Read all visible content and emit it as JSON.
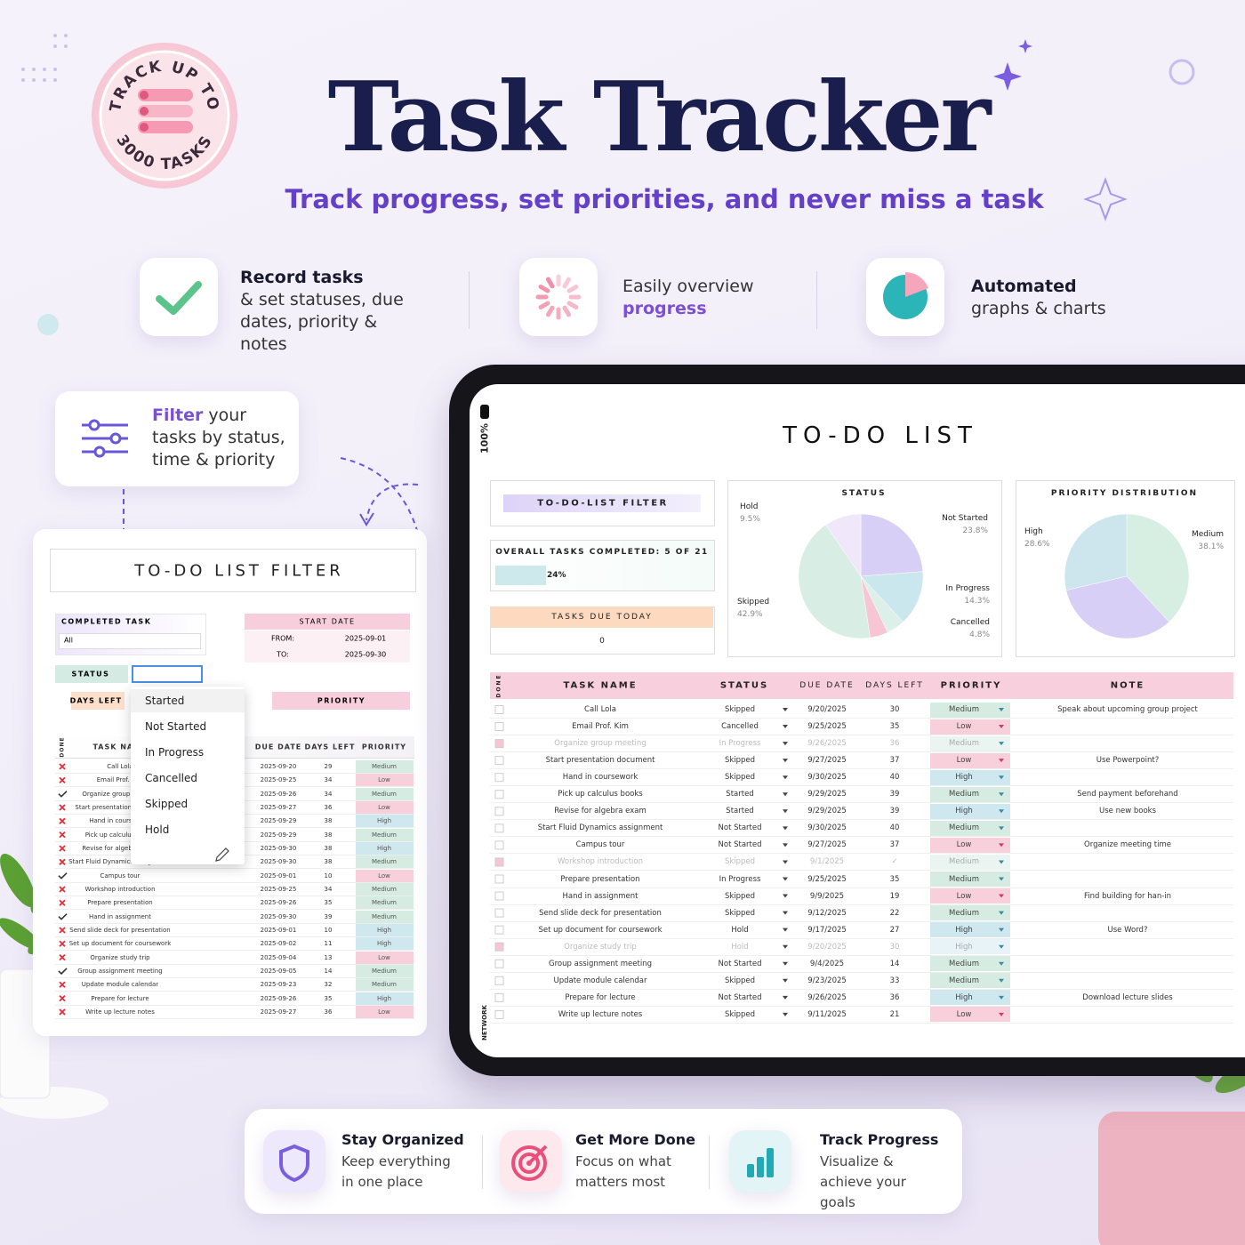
{
  "badge": {
    "top": "TRACK UP TO",
    "bottom": "3000 TASKS"
  },
  "header": {
    "title": "Task Tracker",
    "subtitle": "Track progress, set priorities, and never miss a task"
  },
  "features": [
    {
      "title": "Record tasks",
      "text": "& set statuses, due dates, priority & notes"
    },
    {
      "title": "Easily overview",
      "text": "progress"
    },
    {
      "title": "Automated",
      "text": "graphs & charts"
    }
  ],
  "filter_callout": {
    "highlight": "Filter",
    "text": "your tasks by status, time & priority"
  },
  "filter_panel": {
    "title": "TO-DO LIST FILTER",
    "completed_label": "COMPLETED TASK",
    "completed_value": "All",
    "start_date_label": "START DATE",
    "from_label": "FROM:",
    "from_value": "2025-09-01",
    "to_label": "TO:",
    "to_value": "2025-09-30",
    "status_label": "STATUS",
    "days_left_label": "DAYS LEFT",
    "priority_label": "PRIORITY",
    "status_options": [
      "Started",
      "Not Started",
      "In Progress",
      "Cancelled",
      "Skipped",
      "Hold"
    ],
    "table": {
      "headers": [
        "DONE",
        "TASK NAME",
        "DUE DATE",
        "DAYS LEFT",
        "PRIORITY"
      ],
      "rows": [
        [
          false,
          "Call Lola",
          "2025-09-20",
          29,
          "Medium"
        ],
        [
          false,
          "Email Prof. Kim",
          "2025-09-25",
          34,
          "Low"
        ],
        [
          true,
          "Organize group meeting",
          "2025-09-26",
          34,
          "Medium"
        ],
        [
          false,
          "Start presentation document",
          "2025-09-27",
          36,
          "Low"
        ],
        [
          false,
          "Hand in coursework",
          "2025-09-29",
          38,
          "High"
        ],
        [
          false,
          "Pick up calculus books",
          "2025-09-29",
          38,
          "Medium"
        ],
        [
          false,
          "Revise for algebra exam",
          "2025-09-30",
          38,
          "High"
        ],
        [
          false,
          "Start Fluid Dynamics assignment",
          "2025-09-30",
          38,
          "Medium"
        ],
        [
          true,
          "Campus tour",
          "2025-09-01",
          10,
          "Low"
        ],
        [
          false,
          "Workshop introduction",
          "2025-09-25",
          34,
          "Medium"
        ],
        [
          false,
          "Prepare presentation",
          "2025-09-26",
          35,
          "Medium"
        ],
        [
          true,
          "Hand in assignment",
          "2025-09-30",
          39,
          "Medium"
        ],
        [
          false,
          "Send slide deck for presentation",
          "2025-09-01",
          10,
          "High"
        ],
        [
          false,
          "Set up document for coursework",
          "2025-09-02",
          11,
          "High"
        ],
        [
          false,
          "Organize study trip",
          "2025-09-04",
          13,
          "Low"
        ],
        [
          true,
          "Group assignment meeting",
          "2025-09-05",
          14,
          "Medium"
        ],
        [
          false,
          "Update module calendar",
          "2025-09-23",
          32,
          "Medium"
        ],
        [
          false,
          "Prepare for lecture",
          "2025-09-26",
          35,
          "High"
        ],
        [
          false,
          "Write up lecture notes",
          "2025-09-27",
          36,
          "Low"
        ]
      ]
    }
  },
  "tablet": {
    "zoom": "100%",
    "network": "NETWORK",
    "title": "TO-DO LIST",
    "filter_button": "TO-DO-LIST FILTER",
    "overall": "OVERALL TASKS COMPLETED: 5 OF 21",
    "progress": {
      "value": 24,
      "label": "24%"
    },
    "due_today_label": "TASKS DUE TODAY",
    "due_today_value": 0,
    "status_chart": {
      "type": "pie",
      "title": "STATUS",
      "categories": [
        "Not Started",
        "In Progress",
        "Cancelled",
        null,
        "Skipped",
        "Hold"
      ],
      "values": [
        23.8,
        14.3,
        4.8,
        4.7,
        42.9,
        9.5
      ],
      "value_labels": [
        "23.8%",
        "14.3%",
        "4.8%",
        null,
        "42.9%",
        "9.5%"
      ],
      "colors": [
        "#d8cff6",
        "#c9e7ec",
        "#dcefe8",
        "#f6c6d5",
        "#d8ede4",
        "#f0e8fa"
      ]
    },
    "priority_chart": {
      "type": "pie",
      "title": "PRIORITY DISTRIBUTION",
      "categories": [
        "Medium",
        null,
        "High"
      ],
      "values": [
        38.1,
        33.3,
        28.6
      ],
      "value_labels": [
        "38.1%",
        null,
        "28.6%"
      ],
      "colors": [
        "#d7eee3",
        "#d8cff6",
        "#cde6ee"
      ]
    },
    "table": {
      "headers": [
        "DONE",
        "TASK NAME",
        "STATUS",
        "DUE DATE",
        "DAYS LEFT",
        "PRIORITY",
        "NOTE"
      ],
      "rows": [
        {
          "done": false,
          "name": "Call Lola",
          "status": "Skipped",
          "due": "9/20/2025",
          "days": 30,
          "priority": "Medium",
          "note": "Speak about upcoming group project"
        },
        {
          "done": false,
          "name": "Email Prof. Kim",
          "status": "Cancelled",
          "due": "9/25/2025",
          "days": 35,
          "priority": "Low"
        },
        {
          "done": true,
          "name": "Organize group meeting",
          "status": "In Progress",
          "due": "9/26/2025",
          "days": 36,
          "priority": "Medium"
        },
        {
          "done": false,
          "name": "Start presentation document",
          "status": "Skipped",
          "due": "9/27/2025",
          "days": 37,
          "priority": "Low",
          "note": "Use Powerpoint?"
        },
        {
          "done": false,
          "name": "Hand in coursework",
          "status": "Skipped",
          "due": "9/30/2025",
          "days": 40,
          "priority": "High"
        },
        {
          "done": false,
          "name": "Pick up calculus books",
          "status": "Started",
          "due": "9/29/2025",
          "days": 39,
          "priority": "Medium",
          "note": "Send payment beforehand"
        },
        {
          "done": false,
          "name": "Revise for algebra exam",
          "status": "Started",
          "due": "9/29/2025",
          "days": 39,
          "priority": "High",
          "note": "Use new books"
        },
        {
          "done": false,
          "name": "Start Fluid Dynamics assignment",
          "status": "Not Started",
          "due": "9/30/2025",
          "days": 40,
          "priority": "Medium"
        },
        {
          "done": false,
          "name": "Campus tour",
          "status": "Not Started",
          "due": "9/27/2025",
          "days": 37,
          "priority": "Low",
          "note": "Organize meeting time"
        },
        {
          "done": true,
          "name": "Workshop introduction",
          "status": "Skipped",
          "due": "9/1/2025",
          "days": "✓",
          "priority": "Medium"
        },
        {
          "done": false,
          "name": "Prepare presentation",
          "status": "In Progress",
          "due": "9/25/2025",
          "days": 35,
          "priority": "Medium"
        },
        {
          "done": false,
          "name": "Hand in assignment",
          "status": "Skipped",
          "due": "9/9/2025",
          "days": 19,
          "priority": "Low",
          "note": "Find building for han-in"
        },
        {
          "done": false,
          "name": "Send slide deck for presentation",
          "status": "Skipped",
          "due": "9/12/2025",
          "days": 22,
          "priority": "Medium"
        },
        {
          "done": false,
          "name": "Set up document for coursework",
          "status": "Hold",
          "due": "9/17/2025",
          "days": 27,
          "priority": "High",
          "note": "Use Word?"
        },
        {
          "done": true,
          "name": "Organize study trip",
          "status": "Hold",
          "due": "9/20/2025",
          "days": 30,
          "priority": "High"
        },
        {
          "done": false,
          "name": "Group assignment meeting",
          "status": "Not Started",
          "due": "9/4/2025",
          "days": 14,
          "priority": "Medium"
        },
        {
          "done": false,
          "name": "Update module calendar",
          "status": "Skipped",
          "due": "9/23/2025",
          "days": 33,
          "priority": "Medium"
        },
        {
          "done": false,
          "name": "Prepare for lecture",
          "status": "Not Started",
          "due": "9/26/2025",
          "days": 36,
          "priority": "High",
          "note": "Download lecture slides"
        },
        {
          "done": false,
          "name": "Write up lecture notes",
          "status": "Skipped",
          "due": "9/11/2025",
          "days": 21,
          "priority": "Low"
        }
      ]
    }
  },
  "bottom_features": [
    {
      "title": "Stay Organized",
      "text": "Keep everything in one place"
    },
    {
      "title": "Get More Done",
      "text": "Focus on what matters most"
    },
    {
      "title": "Track Progress",
      "text": "Visualize & achieve your goals"
    }
  ]
}
